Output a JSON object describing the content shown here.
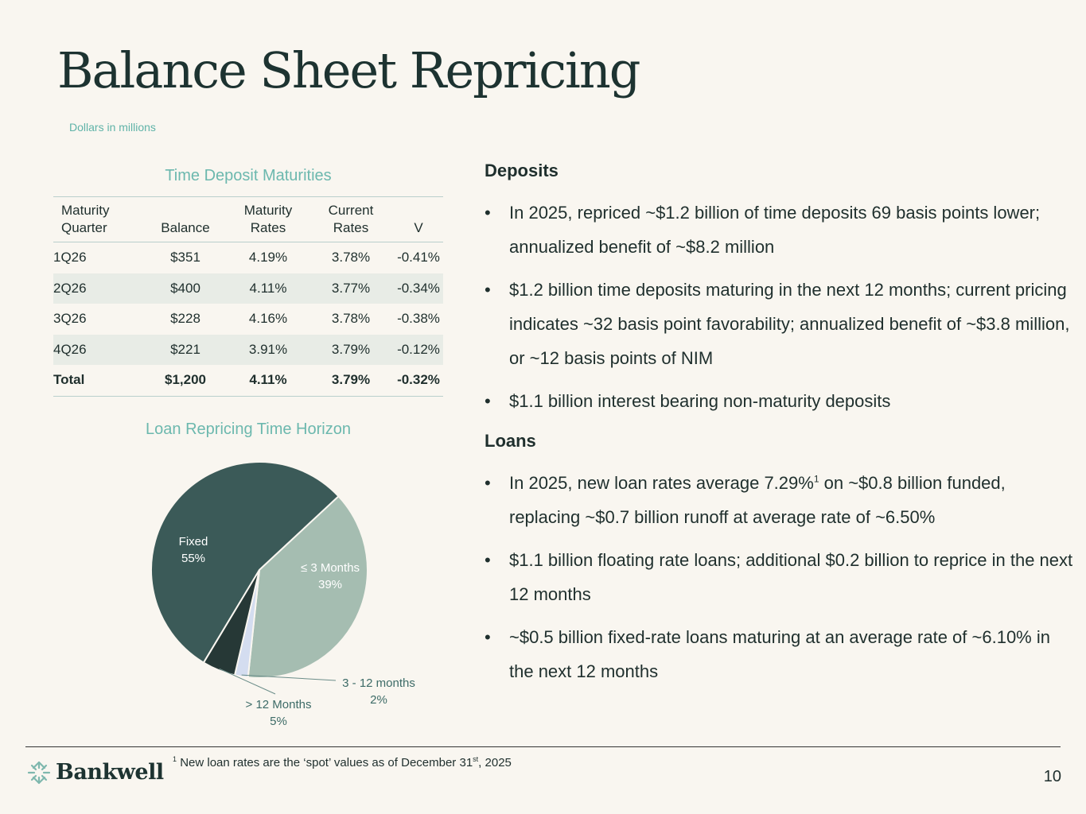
{
  "title": "Balance Sheet Repricing",
  "subtitle": "Dollars in millions",
  "table": {
    "title": "Time Deposit Maturities",
    "headers": [
      [
        "Maturity",
        "Quarter"
      ],
      [
        "Balance"
      ],
      [
        "Maturity",
        "Rates"
      ],
      [
        "Current",
        "Rates"
      ],
      [
        "V"
      ]
    ],
    "rows": [
      [
        "1Q26",
        "$351",
        "4.19%",
        "3.78%",
        "-0.41%"
      ],
      [
        "2Q26",
        "$400",
        "4.11%",
        "3.77%",
        "-0.34%"
      ],
      [
        "3Q26",
        "$228",
        "4.16%",
        "3.78%",
        "-0.38%"
      ],
      [
        "4Q26",
        "$221",
        "3.91%",
        "3.79%",
        "-0.12%"
      ]
    ],
    "total": [
      "Total",
      "$1,200",
      "4.11%",
      "3.79%",
      "-0.32%"
    ]
  },
  "chart_data": {
    "type": "pie",
    "title": "Loan Repricing Time Horizon",
    "slices": [
      {
        "label": "Fixed",
        "value": 55,
        "display": "55%",
        "color": "#3b5a58"
      },
      {
        "label": "≤ 3 Months",
        "value": 39,
        "display": "39%",
        "color": "#a5bdb1"
      },
      {
        "label": "3 - 12 months",
        "value": 2,
        "display": "2%",
        "color": "#d4ddf0"
      },
      {
        "label": "> 12 Months",
        "value": 5,
        "display": "5%",
        "color": "#263836"
      }
    ]
  },
  "deposits": {
    "heading": "Deposits",
    "bullets": [
      "In 2025, repriced ~$1.2 billion of time deposits 69 basis points lower; annualized benefit of ~$8.2 million",
      "$1.2 billion time deposits maturing in the next 12 months; current pricing indicates ~32 basis point favorability; annualized benefit of ~$3.8 million, or ~12 basis points of NIM",
      "$1.1 billion interest bearing non-maturity deposits"
    ]
  },
  "loans": {
    "heading": "Loans",
    "bullet1_pre": "In 2025, new loan rates average 7.29%",
    "bullet1_sup": "1",
    "bullet1_post": " on ~$0.8 billion funded, replacing ~$0.7 billion runoff at average rate of ~6.50%",
    "bullets": [
      "$1.1 billion floating rate loans; additional $0.2 billion to reprice in the next 12 months",
      "~$0.5 billion fixed-rate loans maturing at an average rate of ~6.10% in the next 12 months"
    ]
  },
  "footer": {
    "logo": "Bankwell",
    "note_sup": "1",
    "note_pre": "New loan rates are the ‘spot’ values as of December 31",
    "note_ord": "st",
    "note_post": ", 2025",
    "page": "10"
  }
}
